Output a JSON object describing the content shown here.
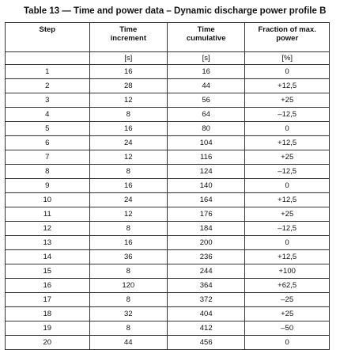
{
  "caption": "Table 13 — Time and power data – Dynamic discharge power profile B",
  "table": {
    "headers": [
      "Step",
      "Time\nincrement",
      "Time\ncumulative",
      "Fraction of max.\npower"
    ],
    "units": [
      "",
      "[s]",
      "[s]",
      "[%]"
    ],
    "rows": [
      [
        "1",
        "16",
        "16",
        "0"
      ],
      [
        "2",
        "28",
        "44",
        "+12,5"
      ],
      [
        "3",
        "12",
        "56",
        "+25"
      ],
      [
        "4",
        "8",
        "64",
        "–12,5"
      ],
      [
        "5",
        "16",
        "80",
        "0"
      ],
      [
        "6",
        "24",
        "104",
        "+12,5"
      ],
      [
        "7",
        "12",
        "116",
        "+25"
      ],
      [
        "8",
        "8",
        "124",
        "–12,5"
      ],
      [
        "9",
        "16",
        "140",
        "0"
      ],
      [
        "10",
        "24",
        "164",
        "+12,5"
      ],
      [
        "11",
        "12",
        "176",
        "+25"
      ],
      [
        "12",
        "8",
        "184",
        "–12,5"
      ],
      [
        "13",
        "16",
        "200",
        "0"
      ],
      [
        "14",
        "36",
        "236",
        "+12,5"
      ],
      [
        "15",
        "8",
        "244",
        "+100"
      ],
      [
        "16",
        "120",
        "364",
        "+62,5"
      ],
      [
        "17",
        "8",
        "372",
        "–25"
      ],
      [
        "18",
        "32",
        "404",
        "+25"
      ],
      [
        "19",
        "8",
        "412",
        "–50"
      ],
      [
        "20",
        "44",
        "456",
        "0"
      ]
    ]
  }
}
